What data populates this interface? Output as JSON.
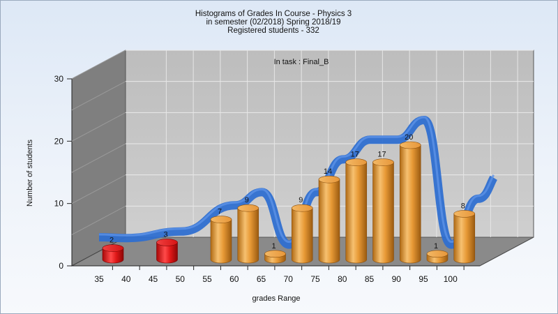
{
  "chart_data": {
    "type": "bar",
    "title_lines": [
      "Histograms of Grades  In Course - Physics 3",
      "in semester  (02/2018) Spring 2018/19",
      "Registered students - 332"
    ],
    "annotation": "In task : Final_B",
    "xlabel": "grades Range",
    "ylabel": "Number of students",
    "x_tick_labels": [
      "35",
      "40",
      "45",
      "50",
      "55",
      "60",
      "65",
      "70",
      "75",
      "80",
      "85",
      "90",
      "95",
      "100"
    ],
    "y_ticks": [
      0,
      10,
      20,
      30
    ],
    "ylim": [
      0,
      30
    ],
    "grid": true,
    "categories": [
      "35",
      "45",
      "55",
      "60",
      "65",
      "70",
      "75",
      "80",
      "85",
      "90",
      "95",
      "100"
    ],
    "values": [
      2,
      3,
      7,
      9,
      1,
      9,
      14,
      17,
      17,
      20,
      1,
      8
    ],
    "bar_colors": [
      "#e01818",
      "#e01818",
      "#f0a53c",
      "#f0a53c",
      "#f0a53c",
      "#f0a53c",
      "#f0a53c",
      "#f0a53c",
      "#f0a53c",
      "#f0a53c",
      "#f0a53c",
      "#f0a53c"
    ],
    "trend_color": "#2f6fd0",
    "wall_color": "#7f7f7f",
    "back_wall_color": "#c4c4c4"
  }
}
